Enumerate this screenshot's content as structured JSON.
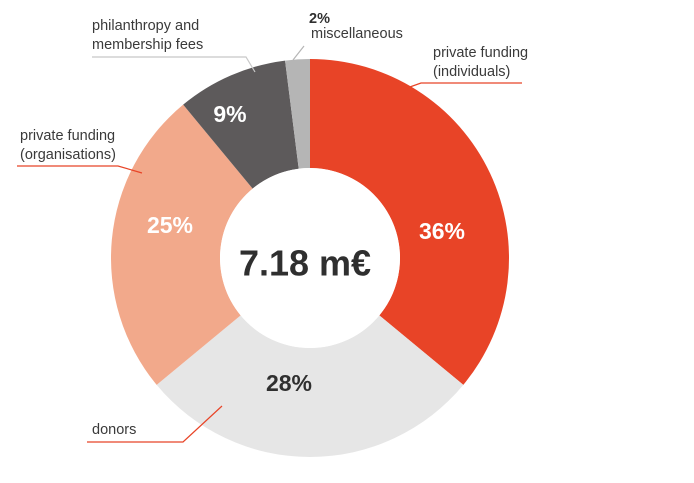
{
  "chart_data": {
    "type": "pie",
    "donut": true,
    "center_label": "7.18 m€",
    "slices": [
      {
        "name": "private funding (individuals)",
        "label_lines": [
          "private funding",
          "(individuals)"
        ],
        "value": 36,
        "pct_label": "36%",
        "color": "#e84427",
        "pct_color": "#ffffff"
      },
      {
        "name": "donors",
        "label_lines": [
          "donors"
        ],
        "value": 28,
        "pct_label": "28%",
        "color": "#e6e6e6",
        "pct_color": "#2f2f2f"
      },
      {
        "name": "private funding (organisations)",
        "label_lines": [
          "private funding",
          "(organisations)"
        ],
        "value": 25,
        "pct_label": "25%",
        "color": "#f2a98b",
        "pct_color": "#ffffff"
      },
      {
        "name": "philanthropy and membership fees",
        "label_lines": [
          "philanthropy and",
          "membership fees"
        ],
        "value": 9,
        "pct_label": "9%",
        "color": "#5d5a5b",
        "pct_color": "#ffffff"
      },
      {
        "name": "miscellaneous",
        "label_lines": [
          "miscellaneous"
        ],
        "value": 2,
        "pct_label": "2%",
        "color": "#b5b5b5",
        "pct_color": "#2f2f2f"
      }
    ],
    "leader_color": "#e84427"
  }
}
